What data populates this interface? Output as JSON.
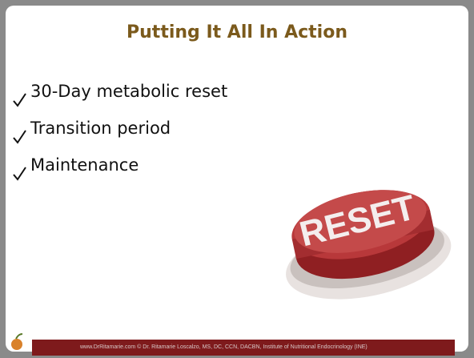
{
  "title": "Putting It All In Action",
  "bullets": [
    "30-Day metabolic reset",
    "Transition period",
    "Maintenance"
  ],
  "button_label": "RESET",
  "footer": "www.DrRitamarie.com    © Dr. Ritamarie Loscalzo, MS, DC, CCN, DACBN, Institute of Nutritional Endocrinology (INE)"
}
